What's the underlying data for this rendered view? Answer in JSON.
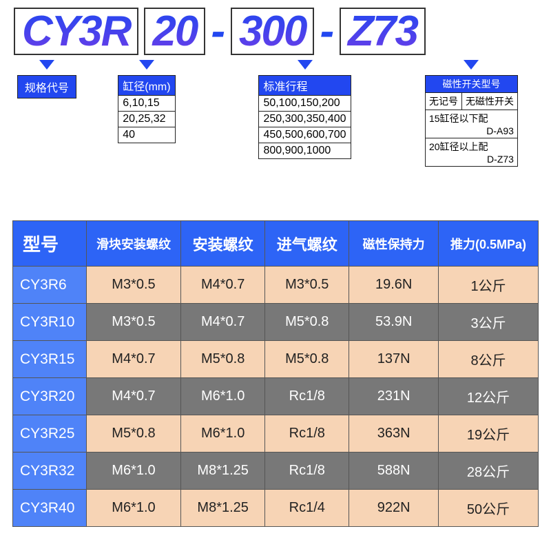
{
  "code": {
    "seg1": "CY3R",
    "seg2": "20",
    "seg3": "300",
    "seg4": "Z73",
    "dash": "-"
  },
  "col1": {
    "header": "规格代号"
  },
  "col2": {
    "header": "缸径(mm)",
    "rows": [
      "6,10,15",
      "20,25,32",
      "40"
    ]
  },
  "col3": {
    "header": "标准行程",
    "rows": [
      "50,100,150,200",
      "250,300,350,400",
      "450,500,600,700",
      "800,900,1000"
    ]
  },
  "col4": {
    "header": "磁性开关型号",
    "row1a": "无记号",
    "row1b": "无磁性开关",
    "row2_line1": "15缸径以下配",
    "row2_line2": "D-A93",
    "row3_line1": "20缸径以上配",
    "row3_line2": "D-Z73"
  },
  "spec": {
    "headers": [
      "型号",
      "滑块安装螺纹",
      "安装螺纹",
      "进气螺纹",
      "磁性保持力",
      "推力(0.5MPa)"
    ],
    "rows": [
      {
        "model": "CY3R6",
        "c": [
          "M3*0.5",
          "M4*0.7",
          "M3*0.5",
          "19.6N",
          "1公斤"
        ]
      },
      {
        "model": "CY3R10",
        "c": [
          "M3*0.5",
          "M4*0.7",
          "M5*0.8",
          "53.9N",
          "3公斤"
        ]
      },
      {
        "model": "CY3R15",
        "c": [
          "M4*0.7",
          "M5*0.8",
          "M5*0.8",
          "137N",
          "8公斤"
        ]
      },
      {
        "model": "CY3R20",
        "c": [
          "M4*0.7",
          "M6*1.0",
          "Rc1/8",
          "231N",
          "12公斤"
        ]
      },
      {
        "model": "CY3R25",
        "c": [
          "M5*0.8",
          "M6*1.0",
          "Rc1/8",
          "363N",
          "19公斤"
        ]
      },
      {
        "model": "CY3R32",
        "c": [
          "M6*1.0",
          "M8*1.25",
          "Rc1/8",
          "588N",
          "28公斤"
        ]
      },
      {
        "model": "CY3R40",
        "c": [
          "M6*1.0",
          "M8*1.25",
          "Rc1/4",
          "922N",
          "50公斤"
        ]
      }
    ]
  },
  "colors": {
    "blue": "#2247f0",
    "tableBlue": "#2d64f6",
    "rowBlue": "#4f83f8",
    "peach": "#f7d4b5",
    "grey": "#787878"
  }
}
